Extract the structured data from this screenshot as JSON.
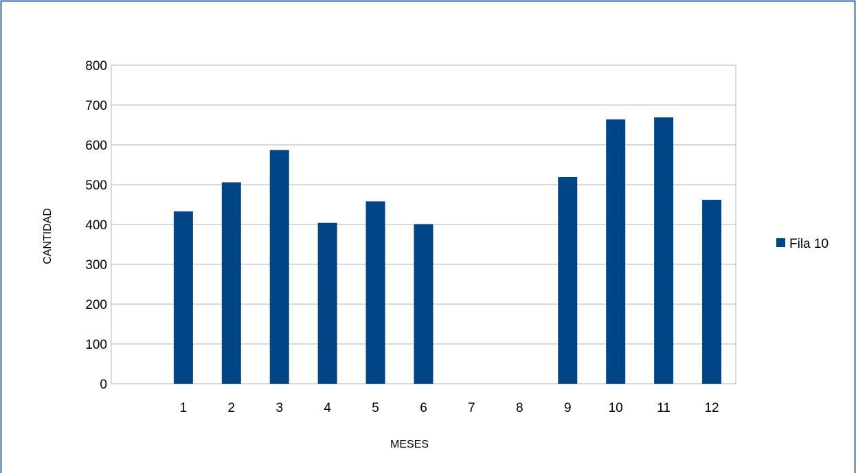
{
  "chart_data": {
    "type": "bar",
    "categories": [
      "1",
      "2",
      "3",
      "4",
      "5",
      "6",
      "7",
      "8",
      "9",
      "10",
      "11",
      "12"
    ],
    "series": [
      {
        "name": "Fila 10",
        "values": [
          433,
          506,
          587,
          404,
          458,
          401,
          0,
          0,
          519,
          664,
          669,
          462
        ],
        "color": "#004586"
      }
    ],
    "title": "",
    "xlabel": "MESES",
    "ylabel": "CANTIDAD",
    "ylim": [
      0,
      800
    ],
    "yticks": [
      0,
      100,
      200,
      300,
      400,
      500,
      600,
      700,
      800
    ],
    "grid": true,
    "legend_position": "right"
  },
  "colors": {
    "frame_border": "#3465a4",
    "gridline": "#b3b3b3",
    "plot_border": "#b3b3b3"
  }
}
